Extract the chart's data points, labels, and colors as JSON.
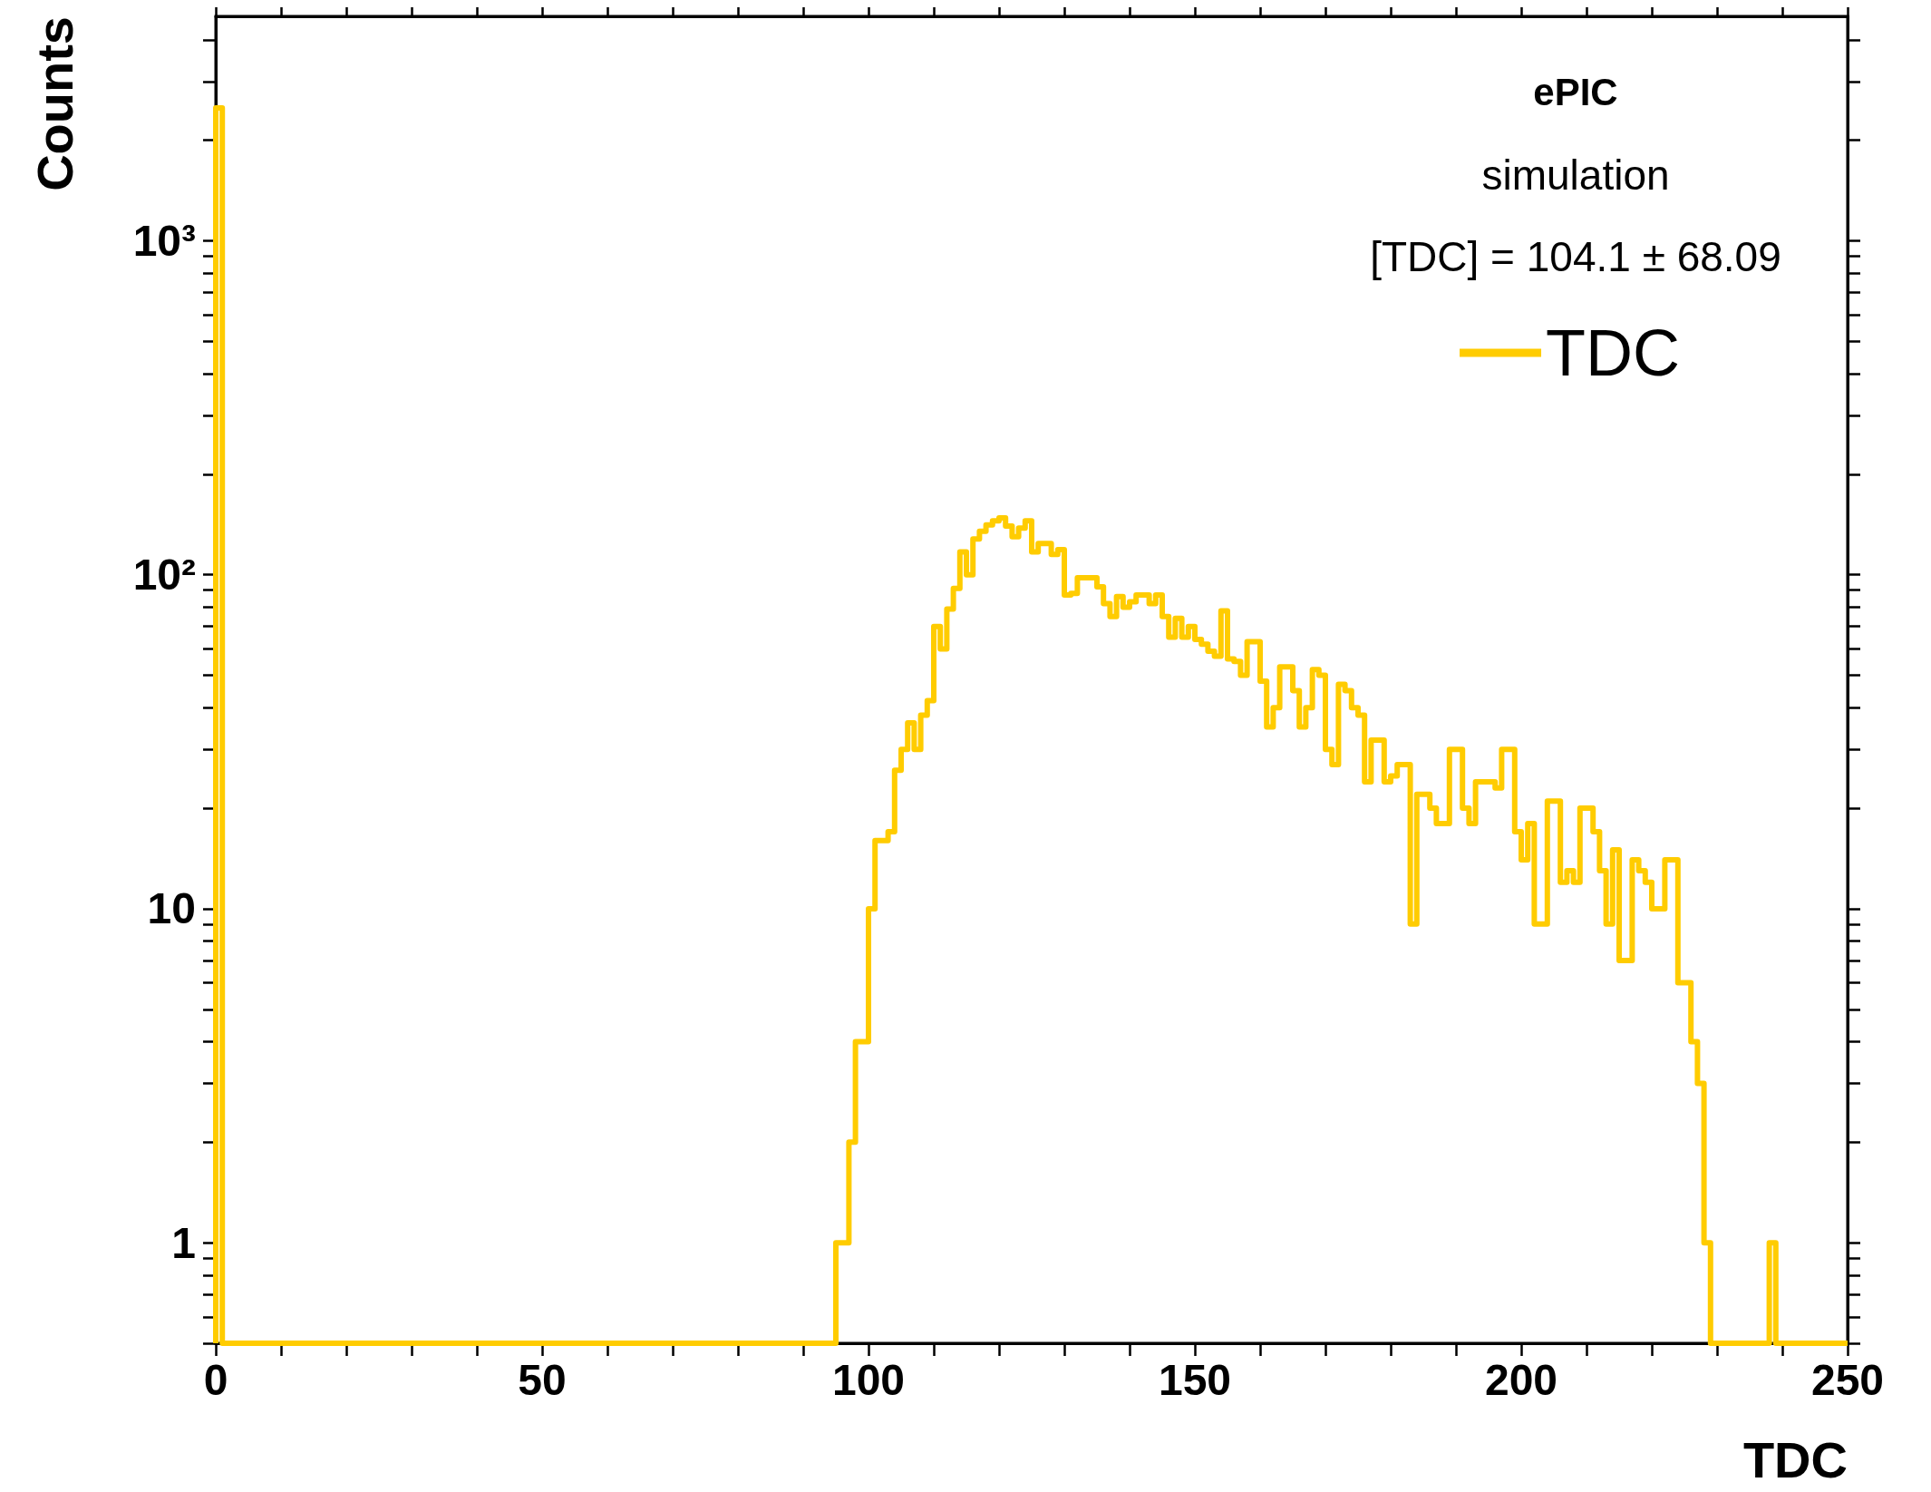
{
  "chart_data": {
    "type": "histogram",
    "xlabel": "TDC",
    "ylabel": "Counts",
    "annotations": [
      "ePIC",
      "simulation",
      "[TDC] = 104.1 ± 68.09"
    ],
    "bins": [
      0,
      1,
      2,
      3,
      4,
      5,
      6,
      7,
      8,
      9,
      10,
      11,
      12,
      13,
      14,
      15,
      16,
      17,
      18,
      19,
      20,
      21,
      22,
      23,
      24,
      25,
      26,
      27,
      28,
      29,
      30,
      31,
      32,
      33,
      34,
      35,
      36,
      37,
      38,
      39,
      40,
      41,
      42,
      43,
      44,
      45,
      46,
      47,
      48,
      49,
      50,
      51,
      52,
      53,
      54,
      55,
      56,
      57,
      58,
      59,
      60,
      61,
      62,
      63,
      64,
      65,
      66,
      67,
      68,
      69,
      70,
      71,
      72,
      73,
      74,
      75,
      76,
      77,
      78,
      79,
      80,
      81,
      82,
      83,
      84,
      85,
      86,
      87,
      88,
      89,
      90,
      91,
      92,
      93,
      94,
      95,
      96,
      97,
      98,
      99,
      100,
      101,
      102,
      103,
      104,
      105,
      106,
      107,
      108,
      109,
      110,
      111,
      112,
      113,
      114,
      115,
      116,
      117,
      118,
      119,
      120,
      121,
      122,
      123,
      124,
      125,
      126,
      127,
      128,
      129,
      130,
      131,
      132,
      133,
      134,
      135,
      136,
      137,
      138,
      139,
      140,
      141,
      142,
      143,
      144,
      145,
      146,
      147,
      148,
      149,
      150,
      151,
      152,
      153,
      154,
      155,
      156,
      157,
      158,
      159,
      160,
      161,
      162,
      163,
      164,
      165,
      166,
      167,
      168,
      169,
      170,
      171,
      172,
      173,
      174,
      175,
      176,
      177,
      178,
      179,
      180,
      181,
      182,
      183,
      184,
      185,
      186,
      187,
      188,
      189,
      190,
      191,
      192,
      193,
      194,
      195,
      196,
      197,
      198,
      199,
      200,
      201,
      202,
      203,
      204,
      205,
      206,
      207,
      208,
      209,
      210,
      211,
      212,
      213,
      214,
      215,
      216,
      217,
      218,
      219,
      220,
      221,
      222,
      223,
      224,
      225,
      226,
      227,
      228,
      229,
      230,
      231,
      232,
      233,
      234,
      235,
      236,
      237,
      238,
      239,
      240,
      241,
      242,
      243,
      244,
      245,
      246,
      247,
      248,
      249,
      250
    ],
    "series": [
      {
        "name": "TDC",
        "color": "#ffcc00",
        "values": [
          2500,
          null,
          null,
          null,
          null,
          null,
          null,
          null,
          null,
          null,
          null,
          null,
          null,
          null,
          null,
          null,
          null,
          null,
          null,
          null,
          null,
          null,
          null,
          null,
          null,
          null,
          null,
          null,
          null,
          null,
          null,
          null,
          null,
          null,
          null,
          null,
          null,
          null,
          null,
          null,
          null,
          null,
          null,
          null,
          null,
          null,
          null,
          null,
          null,
          null,
          null,
          null,
          null,
          null,
          null,
          null,
          null,
          null,
          null,
          null,
          null,
          null,
          null,
          null,
          null,
          null,
          null,
          null,
          null,
          null,
          null,
          null,
          null,
          null,
          null,
          null,
          null,
          null,
          null,
          null,
          null,
          null,
          null,
          null,
          null,
          null,
          null,
          null,
          null,
          null,
          null,
          null,
          null,
          null,
          null,
          1,
          1,
          2,
          4,
          4,
          10,
          16,
          16,
          17,
          26,
          30,
          36,
          30,
          38,
          42,
          70,
          60,
          79,
          91,
          117,
          100,
          128,
          135,
          141,
          145,
          148,
          140,
          130,
          138,
          145,
          117,
          124,
          124,
          115,
          119,
          87,
          88,
          98,
          98,
          98,
          92,
          82,
          75,
          86,
          80,
          83,
          87,
          87,
          82,
          87,
          75,
          65,
          74,
          65,
          70,
          64,
          62,
          59,
          57,
          78,
          56,
          55,
          50,
          63,
          63,
          48,
          35,
          40,
          53,
          53,
          45,
          35,
          40,
          52,
          50,
          30,
          27,
          47,
          45,
          40,
          38,
          24,
          32,
          32,
          24,
          25,
          27,
          27,
          9,
          22,
          22,
          20,
          18,
          18,
          30,
          30,
          20,
          18,
          24,
          24,
          24,
          23,
          30,
          30,
          17,
          14,
          18,
          9,
          9,
          21,
          21,
          12,
          13,
          12,
          20,
          20,
          17,
          13,
          9,
          15,
          7,
          7,
          14,
          13,
          12,
          10,
          10,
          14,
          14,
          6,
          6,
          4,
          3,
          1,
          null,
          null,
          null,
          null,
          null,
          null,
          null,
          null,
          null,
          1,
          null,
          null,
          null,
          null,
          null,
          null,
          null,
          null,
          null,
          null,
          null
        ]
      }
    ],
    "log": "y",
    "xlim": [
      0,
      250
    ],
    "xticks": [
      0,
      {
        "value": 10,
        "label": null
      },
      {
        "value": 20,
        "label": null
      },
      {
        "value": 30,
        "label": null
      },
      {
        "value": 40,
        "label": null
      },
      50,
      {
        "value": 60,
        "label": null
      },
      {
        "value": 70,
        "label": null
      },
      {
        "value": 80,
        "label": null
      },
      {
        "value": 90,
        "label": null
      },
      100,
      {
        "value": 110,
        "label": null
      },
      {
        "value": 120,
        "label": null
      },
      {
        "value": 130,
        "label": null
      },
      {
        "value": 140,
        "label": null
      },
      150,
      {
        "value": 160,
        "label": null
      },
      {
        "value": 170,
        "label": null
      },
      {
        "value": 180,
        "label": null
      },
      {
        "value": 190,
        "label": null
      },
      200,
      {
        "value": 210,
        "label": null
      },
      {
        "value": 220,
        "label": null
      },
      {
        "value": 230,
        "label": null
      },
      {
        "value": 240,
        "label": null
      },
      250
    ],
    "ylim": [
      0.5,
      4700
    ],
    "yticks": [
      {
        "value": 0.5,
        "label": null
      },
      {
        "value": 0.6,
        "label": null
      },
      {
        "value": 0.7,
        "label": null
      },
      {
        "value": 0.8,
        "label": null
      },
      {
        "value": 0.9,
        "label": null
      },
      1,
      {
        "value": 2,
        "label": null
      },
      {
        "value": 3,
        "label": null
      },
      {
        "value": 4,
        "label": null
      },
      {
        "value": 5,
        "label": null
      },
      {
        "value": 6,
        "label": null
      },
      {
        "value": 7,
        "label": null
      },
      {
        "value": 8,
        "label": null
      },
      {
        "value": 9,
        "label": null
      },
      10,
      {
        "value": 20,
        "label": null
      },
      {
        "value": 30,
        "label": null
      },
      {
        "value": 40,
        "label": null
      },
      {
        "value": 50,
        "label": null
      },
      {
        "value": 60,
        "label": null
      },
      {
        "value": 70,
        "label": null
      },
      {
        "value": 80,
        "label": null
      },
      {
        "value": 90,
        "label": null
      },
      {
        "value": 100,
        "label": "10²"
      },
      {
        "value": 200,
        "label": null
      },
      {
        "value": 300,
        "label": null
      },
      {
        "value": 400,
        "label": null
      },
      {
        "value": 500,
        "label": null
      },
      {
        "value": 600,
        "label": null
      },
      {
        "value": 700,
        "label": null
      },
      {
        "value": 800,
        "label": null
      },
      {
        "value": 900,
        "label": null
      },
      {
        "value": 1000,
        "label": "10³"
      },
      {
        "value": 2000,
        "label": null
      },
      {
        "value": 3000,
        "label": null
      },
      {
        "value": 4000,
        "label": null
      }
    ],
    "legend": "top right"
  }
}
